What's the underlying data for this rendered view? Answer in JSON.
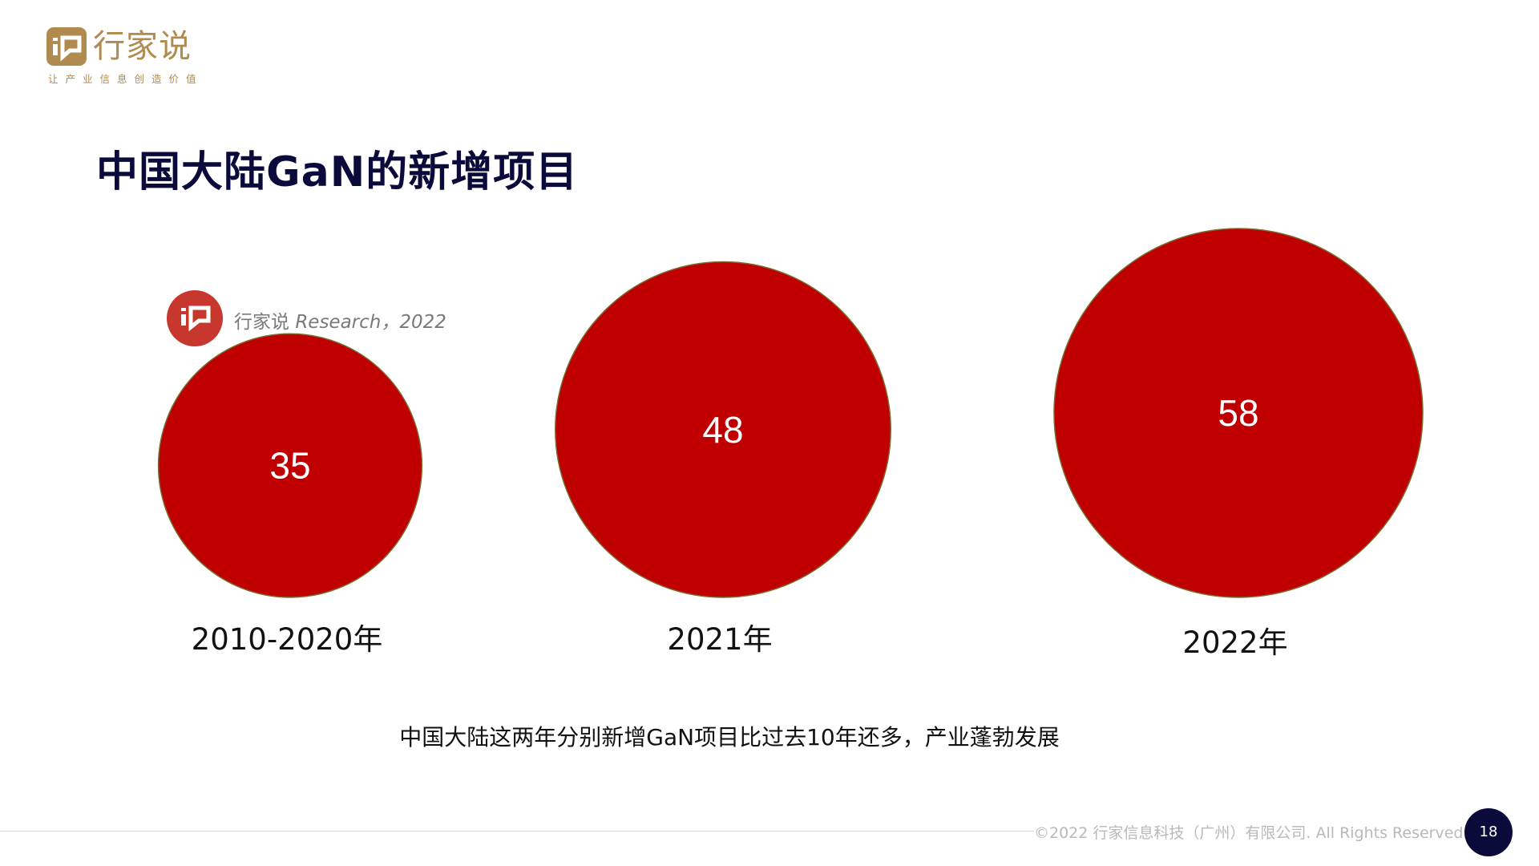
{
  "brand": {
    "name": "行家说",
    "tagline": "让产业信息创造价值",
    "logo_color": "#b08a4e",
    "icon": "chat-bubble-logo-icon"
  },
  "slide": {
    "title": "中国大陆GaN的新增项目",
    "caption": "中国大陆这两年分别新增GaN项目比过去10年还多，产业蓬勃发展",
    "copyright": "©2022 行家信息科技（广州）有限公司. All Rights Reserved.",
    "page_number": "18"
  },
  "source": {
    "prefix": "行家说",
    "label": "Research，2022",
    "badge_color": "#c8372d"
  },
  "chart_data": {
    "type": "bubble",
    "title": "",
    "categories": [
      "2010-2020年",
      "2021年",
      "2022年"
    ],
    "values": [
      35,
      48,
      58
    ],
    "data_labels": [
      "35",
      "48",
      "58"
    ],
    "bubble_color": "#c00000",
    "legend": "none",
    "grid": false
  }
}
